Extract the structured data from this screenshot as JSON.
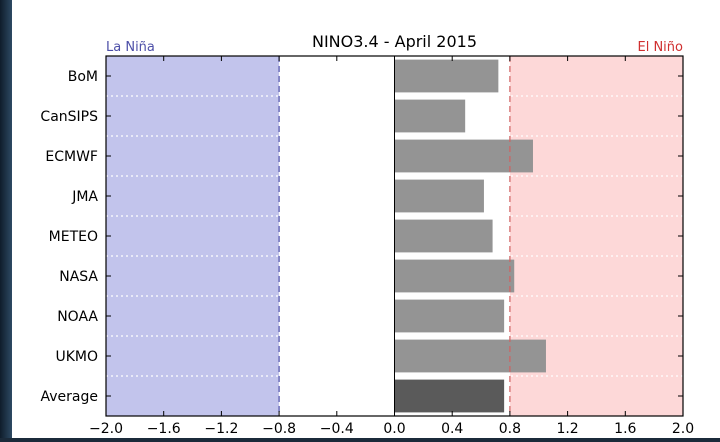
{
  "chart_data": {
    "type": "bar",
    "orientation": "horizontal",
    "title": "NINO3.4 - April 2015",
    "categories": [
      "BoM",
      "CanSIPS",
      "ECMWF",
      "JMA",
      "METEO",
      "NASA",
      "NOAA",
      "UKMO",
      "Average"
    ],
    "values": [
      0.72,
      0.49,
      0.96,
      0.62,
      0.68,
      0.83,
      0.76,
      1.05,
      0.76
    ],
    "xlim": [
      -2.0,
      2.0
    ],
    "xticks": [
      "−2.0",
      "−1.6",
      "−1.2",
      "−0.8",
      "−0.4",
      "0.0",
      "0.4",
      "0.8",
      "1.2",
      "1.6",
      "2.0"
    ],
    "thresholds": [
      -0.8,
      0.8
    ],
    "regions": {
      "la_nina": {
        "label": "La Niña",
        "color": "#c2c4ec",
        "text_color": "#4d4fa8"
      },
      "el_nino": {
        "label": "El Niño",
        "color": "#fdd8d8",
        "text_color": "#d03030"
      }
    },
    "bar_color": "#949494",
    "average_bar_color": "#5a5a5a",
    "grid": "horizontal dotted separators"
  }
}
